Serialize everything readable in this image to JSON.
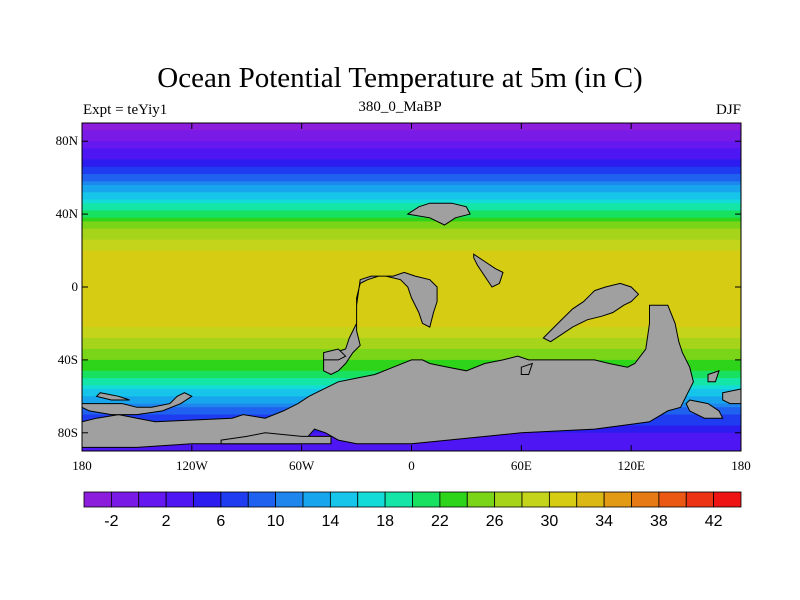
{
  "chart_data": {
    "type": "heatmap",
    "title": "Ocean Potential Temperature at 5m (in C)",
    "left_string": "Expt = teYiy1",
    "center_string": "380_0_MaBP",
    "right_string": "DJF",
    "x_ticks": [
      "180",
      "120W",
      "60W",
      "0",
      "60E",
      "120E",
      "180"
    ],
    "x_tick_values": [
      -180,
      -120,
      -60,
      0,
      60,
      120,
      180
    ],
    "y_ticks": [
      "80N",
      "40N",
      "0",
      "40S",
      "80S"
    ],
    "y_tick_values": [
      80,
      40,
      0,
      -40,
      -80
    ],
    "xlim": [
      -180,
      180
    ],
    "ylim": [
      -90,
      90
    ],
    "colorbar": {
      "levels": [
        -4,
        -2,
        0,
        2,
        4,
        6,
        8,
        10,
        12,
        14,
        16,
        18,
        20,
        22,
        24,
        26,
        28,
        30,
        32,
        34,
        36,
        38,
        40,
        42,
        44
      ],
      "labels": [
        "-2",
        "2",
        "6",
        "10",
        "14",
        "18",
        "22",
        "26",
        "30",
        "34",
        "38",
        "42"
      ],
      "colors": [
        "#8c1ddc",
        "#7a1ae6",
        "#6518f0",
        "#4f16f4",
        "#2c1cf0",
        "#1f3cf0",
        "#1f62f0",
        "#1f86ee",
        "#17a6ee",
        "#17c4ea",
        "#13dcd8",
        "#15e6a8",
        "#18e060",
        "#2ed41a",
        "#7ad418",
        "#a6d41a",
        "#c4d41a",
        "#d6cc14",
        "#dcb814",
        "#e29a14",
        "#e67a14",
        "#ea5814",
        "#ec3414",
        "#ee1414"
      ]
    },
    "latitude_profile": [
      {
        "lat": 90,
        "temp": -3
      },
      {
        "lat": 80,
        "temp": 0
      },
      {
        "lat": 70,
        "temp": 4
      },
      {
        "lat": 60,
        "temp": 9
      },
      {
        "lat": 50,
        "temp": 15
      },
      {
        "lat": 40,
        "temp": 21
      },
      {
        "lat": 30,
        "temp": 27
      },
      {
        "lat": 20,
        "temp": 30
      },
      {
        "lat": 10,
        "temp": 31
      },
      {
        "lat": 0,
        "temp": 31
      },
      {
        "lat": -10,
        "temp": 31.5
      },
      {
        "lat": -20,
        "temp": 30.5
      },
      {
        "lat": -30,
        "temp": 27.5
      },
      {
        "lat": -40,
        "temp": 24
      },
      {
        "lat": -50,
        "temp": 20
      },
      {
        "lat": -60,
        "temp": 14
      },
      {
        "lat": -70,
        "temp": 8
      },
      {
        "lat": -80,
        "temp": 4
      },
      {
        "lat": -90,
        "temp": 2
      }
    ],
    "land_color": "#a0a0a0",
    "land_polygons": [
      [
        [
          -53,
          -78
        ],
        [
          -47,
          -80
        ],
        [
          -40,
          -84
        ],
        [
          -30,
          -86
        ],
        [
          -20,
          -86
        ],
        [
          0,
          -86
        ],
        [
          20,
          -84
        ],
        [
          60,
          -80
        ],
        [
          100,
          -78
        ],
        [
          130,
          -74
        ],
        [
          140,
          -68
        ],
        [
          147,
          -66
        ],
        [
          150,
          -60
        ],
        [
          154,
          -52
        ],
        [
          152,
          -44
        ],
        [
          148,
          -36
        ],
        [
          146,
          -30
        ],
        [
          144,
          -20
        ],
        [
          140,
          -10
        ],
        [
          130,
          -10
        ],
        [
          130,
          -20
        ],
        [
          128,
          -34
        ],
        [
          122,
          -42
        ],
        [
          118,
          -44
        ],
        [
          108,
          -42
        ],
        [
          100,
          -40
        ],
        [
          92,
          -40
        ],
        [
          80,
          -40
        ],
        [
          64,
          -40
        ],
        [
          58,
          -38
        ],
        [
          50,
          -40
        ],
        [
          40,
          -42
        ],
        [
          30,
          -46
        ],
        [
          20,
          -44
        ],
        [
          10,
          -42
        ],
        [
          6,
          -40
        ],
        [
          0,
          -40
        ],
        [
          -10,
          -44
        ],
        [
          -20,
          -48
        ],
        [
          -30,
          -50
        ],
        [
          -40,
          -52
        ],
        [
          -52,
          -58
        ],
        [
          -56,
          -60
        ],
        [
          -62,
          -64
        ],
        [
          -70,
          -68
        ],
        [
          -80,
          -72
        ],
        [
          -92,
          -70
        ],
        [
          -98,
          -72
        ],
        [
          -140,
          -74
        ],
        [
          -150,
          -72
        ],
        [
          -160,
          -70
        ],
        [
          -172,
          -72
        ],
        [
          -180,
          -74
        ],
        [
          -180,
          -88
        ],
        [
          -150,
          -88
        ],
        [
          -120,
          -86
        ],
        [
          -100,
          -86
        ],
        [
          -80,
          -86
        ],
        [
          -60,
          -86
        ]
      ],
      [
        [
          -28,
          4
        ],
        [
          -22,
          6
        ],
        [
          -14,
          6
        ],
        [
          -6,
          4
        ],
        [
          -2,
          0
        ],
        [
          0,
          -6
        ],
        [
          4,
          -14
        ],
        [
          6,
          -20
        ],
        [
          10,
          -22
        ],
        [
          12,
          -14
        ],
        [
          14,
          -8
        ],
        [
          14,
          0
        ],
        [
          10,
          4
        ],
        [
          2,
          6
        ],
        [
          -4,
          8
        ],
        [
          -10,
          6
        ],
        [
          -18,
          6
        ],
        [
          -24,
          4
        ],
        [
          -28,
          2
        ],
        [
          -30,
          -6
        ],
        [
          -30,
          -16
        ],
        [
          -30,
          -24
        ],
        [
          -28,
          -32
        ],
        [
          -32,
          -36
        ],
        [
          -36,
          -42
        ],
        [
          -40,
          -46
        ],
        [
          -44,
          -48
        ],
        [
          -48,
          -46
        ],
        [
          -48,
          -40
        ],
        [
          -42,
          -36
        ],
        [
          -36,
          -34
        ],
        [
          -34,
          -28
        ],
        [
          -30,
          -20
        ],
        [
          -30,
          -10
        ]
      ],
      [
        [
          -2,
          40
        ],
        [
          10,
          38
        ],
        [
          18,
          34
        ],
        [
          24,
          38
        ],
        [
          32,
          40
        ],
        [
          30,
          44
        ],
        [
          22,
          46
        ],
        [
          10,
          46
        ],
        [
          4,
          44
        ]
      ],
      [
        [
          34,
          18
        ],
        [
          40,
          14
        ],
        [
          46,
          10
        ],
        [
          50,
          8
        ],
        [
          48,
          2
        ],
        [
          44,
          0
        ],
        [
          40,
          6
        ],
        [
          36,
          12
        ],
        [
          34,
          16
        ]
      ],
      [
        [
          100,
          -2
        ],
        [
          106,
          0
        ],
        [
          114,
          2
        ],
        [
          120,
          0
        ],
        [
          124,
          -4
        ],
        [
          120,
          -8
        ],
        [
          116,
          -10
        ],
        [
          110,
          -14
        ],
        [
          104,
          -16
        ],
        [
          96,
          -18
        ],
        [
          88,
          -22
        ],
        [
          82,
          -26
        ],
        [
          76,
          -30
        ],
        [
          72,
          -28
        ],
        [
          80,
          -20
        ],
        [
          88,
          -12
        ],
        [
          94,
          -8
        ],
        [
          98,
          -4
        ]
      ],
      [
        [
          -180,
          -64
        ],
        [
          -170,
          -64
        ],
        [
          -158,
          -64
        ],
        [
          -150,
          -66
        ],
        [
          -142,
          -66
        ],
        [
          -132,
          -64
        ],
        [
          -128,
          -60
        ],
        [
          -124,
          -58
        ],
        [
          -120,
          -60
        ],
        [
          -126,
          -64
        ],
        [
          -136,
          -68
        ],
        [
          -150,
          -70
        ],
        [
          -164,
          -70
        ],
        [
          -176,
          -68
        ],
        [
          -180,
          -66
        ]
      ],
      [
        [
          -170,
          -58
        ],
        [
          -160,
          -60
        ],
        [
          -154,
          -62
        ],
        [
          -164,
          -62
        ],
        [
          -172,
          -60
        ]
      ],
      [
        [
          152,
          -62
        ],
        [
          162,
          -64
        ],
        [
          168,
          -68
        ],
        [
          170,
          -72
        ],
        [
          160,
          -72
        ],
        [
          152,
          -68
        ],
        [
          150,
          -64
        ]
      ],
      [
        [
          170,
          -58
        ],
        [
          180,
          -56
        ],
        [
          180,
          -64
        ],
        [
          174,
          -64
        ],
        [
          170,
          -62
        ]
      ],
      [
        [
          -48,
          -36
        ],
        [
          -40,
          -34
        ],
        [
          -36,
          -38
        ],
        [
          -40,
          -40
        ],
        [
          -48,
          -40
        ]
      ],
      [
        [
          60,
          -44
        ],
        [
          66,
          -42
        ],
        [
          64,
          -48
        ],
        [
          60,
          -48
        ]
      ],
      [
        [
          162,
          -48
        ],
        [
          168,
          -46
        ],
        [
          166,
          -52
        ],
        [
          162,
          -52
        ]
      ],
      [
        [
          -104,
          -84
        ],
        [
          -90,
          -82
        ],
        [
          -80,
          -80
        ],
        [
          -60,
          -82
        ],
        [
          -44,
          -82
        ],
        [
          -44,
          -86
        ],
        [
          -80,
          -86
        ],
        [
          -104,
          -86
        ]
      ]
    ]
  }
}
